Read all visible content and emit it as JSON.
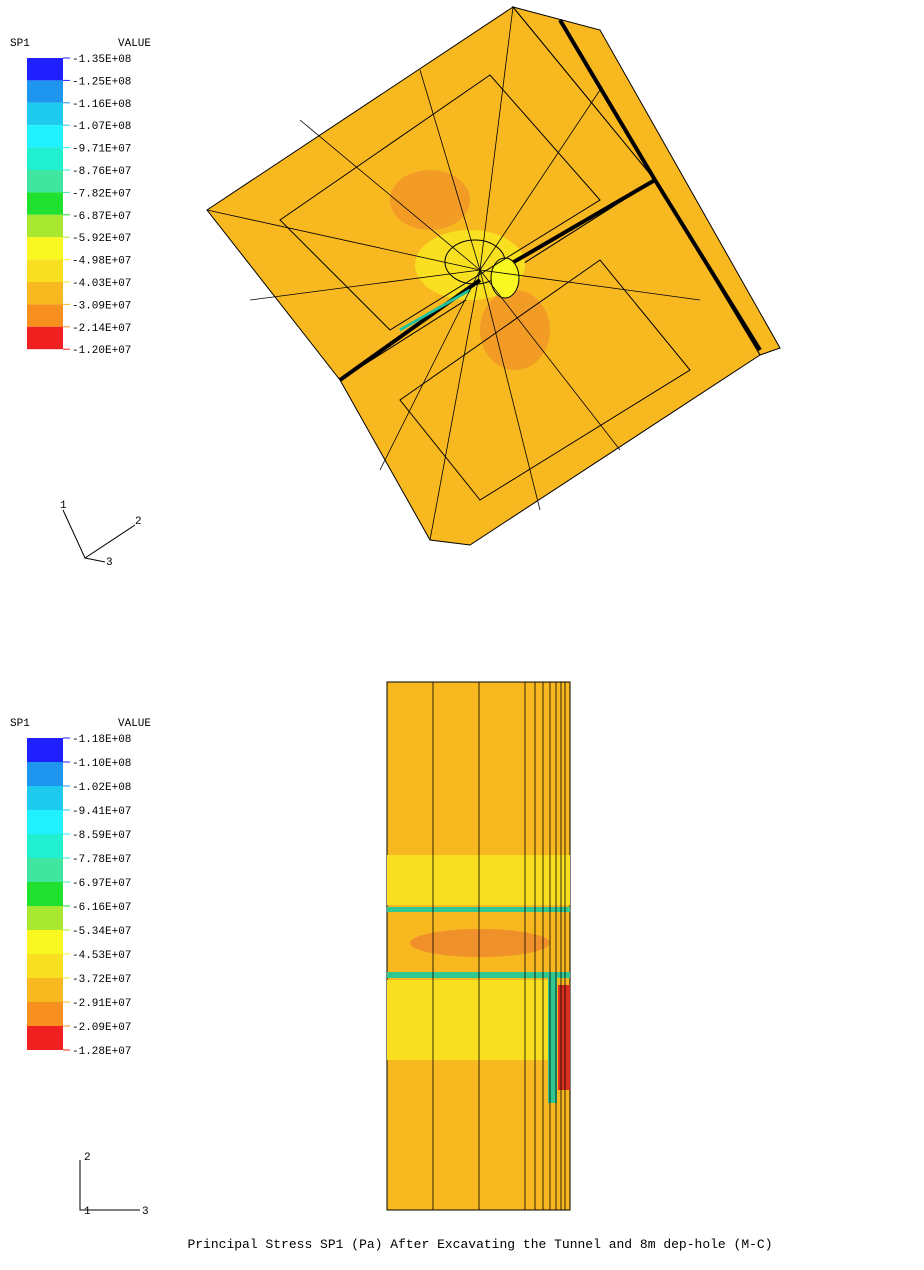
{
  "panels": [
    {
      "legend": {
        "variable": "SP1",
        "header": "VALUE",
        "colors": [
          "#1f1fff",
          "#1e96f0",
          "#1ecbee",
          "#20f0ff",
          "#20f0d0",
          "#40e6a0",
          "#20e030",
          "#a8e830",
          "#f8f820",
          "#f8e020",
          "#f8b820",
          "#f89020",
          "#f02020"
        ],
        "labels": [
          "-1.35E+08",
          "-1.25E+08",
          "-1.16E+08",
          "-1.07E+08",
          "-9.71E+07",
          "-8.76E+07",
          "-7.82E+07",
          "-6.87E+07",
          "-5.92E+07",
          "-4.98E+07",
          "-4.03E+07",
          "-3.09E+07",
          "-2.14E+07",
          "-1.20E+07"
        ]
      },
      "axes": [
        "1",
        "2",
        "3"
      ]
    },
    {
      "legend": {
        "variable": "SP1",
        "header": "VALUE",
        "colors": [
          "#1f1fff",
          "#1e96f0",
          "#1ecbee",
          "#20f0ff",
          "#20f0d0",
          "#40e6a0",
          "#20e030",
          "#a8e830",
          "#f8f820",
          "#f8e020",
          "#f8b820",
          "#f89020",
          "#f02020"
        ],
        "labels": [
          "-1.18E+08",
          "-1.10E+08",
          "-1.02E+08",
          "-9.41E+07",
          "-8.59E+07",
          "-7.78E+07",
          "-6.97E+07",
          "-6.16E+07",
          "-5.34E+07",
          "-4.53E+07",
          "-3.72E+07",
          "-2.91E+07",
          "-2.09E+07",
          "-1.28E+07"
        ]
      },
      "axes": [
        "2",
        "1",
        "3"
      ]
    }
  ],
  "caption": "Principal Stress SP1 (Pa) After Excavating the Tunnel and 8m dep-hole (M-C)"
}
